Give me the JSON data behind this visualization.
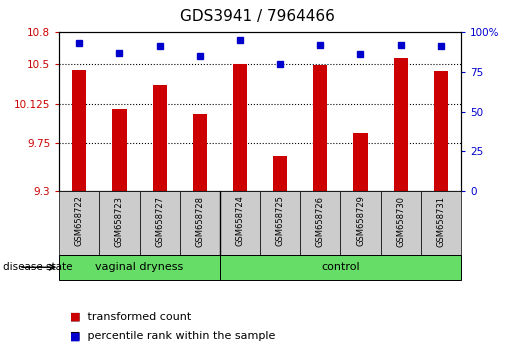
{
  "title": "GDS3941 / 7964466",
  "samples": [
    "GSM658722",
    "GSM658723",
    "GSM658727",
    "GSM658728",
    "GSM658724",
    "GSM658725",
    "GSM658726",
    "GSM658729",
    "GSM658730",
    "GSM658731"
  ],
  "red_values": [
    10.44,
    10.07,
    10.3,
    10.03,
    10.5,
    9.63,
    10.49,
    9.85,
    10.55,
    10.43
  ],
  "blue_values": [
    93,
    87,
    91,
    85,
    95,
    80,
    92,
    86,
    92,
    91
  ],
  "ylim_left": [
    9.3,
    10.8
  ],
  "yticks_left": [
    9.3,
    9.75,
    10.125,
    10.5,
    10.8
  ],
  "ytick_labels_left": [
    "9.3",
    "9.75",
    "10.125",
    "10.5",
    "10.8"
  ],
  "ylim_right": [
    0,
    100
  ],
  "yticks_right": [
    0,
    25,
    50,
    75,
    100
  ],
  "ytick_labels_right": [
    "0",
    "25",
    "50",
    "75",
    "100%"
  ],
  "group1_label": "vaginal dryness",
  "group2_label": "control",
  "group1_count": 4,
  "group2_count": 6,
  "disease_state_label": "disease state",
  "legend_red_label": "transformed count",
  "legend_blue_label": "percentile rank within the sample",
  "bar_color": "#cc0000",
  "dot_color": "#0000cc",
  "group_bg_color": "#66dd66",
  "sample_bg_color": "#cccccc",
  "title_fontsize": 11,
  "tick_fontsize": 7.5,
  "sample_fontsize": 6,
  "legend_fontsize": 8
}
